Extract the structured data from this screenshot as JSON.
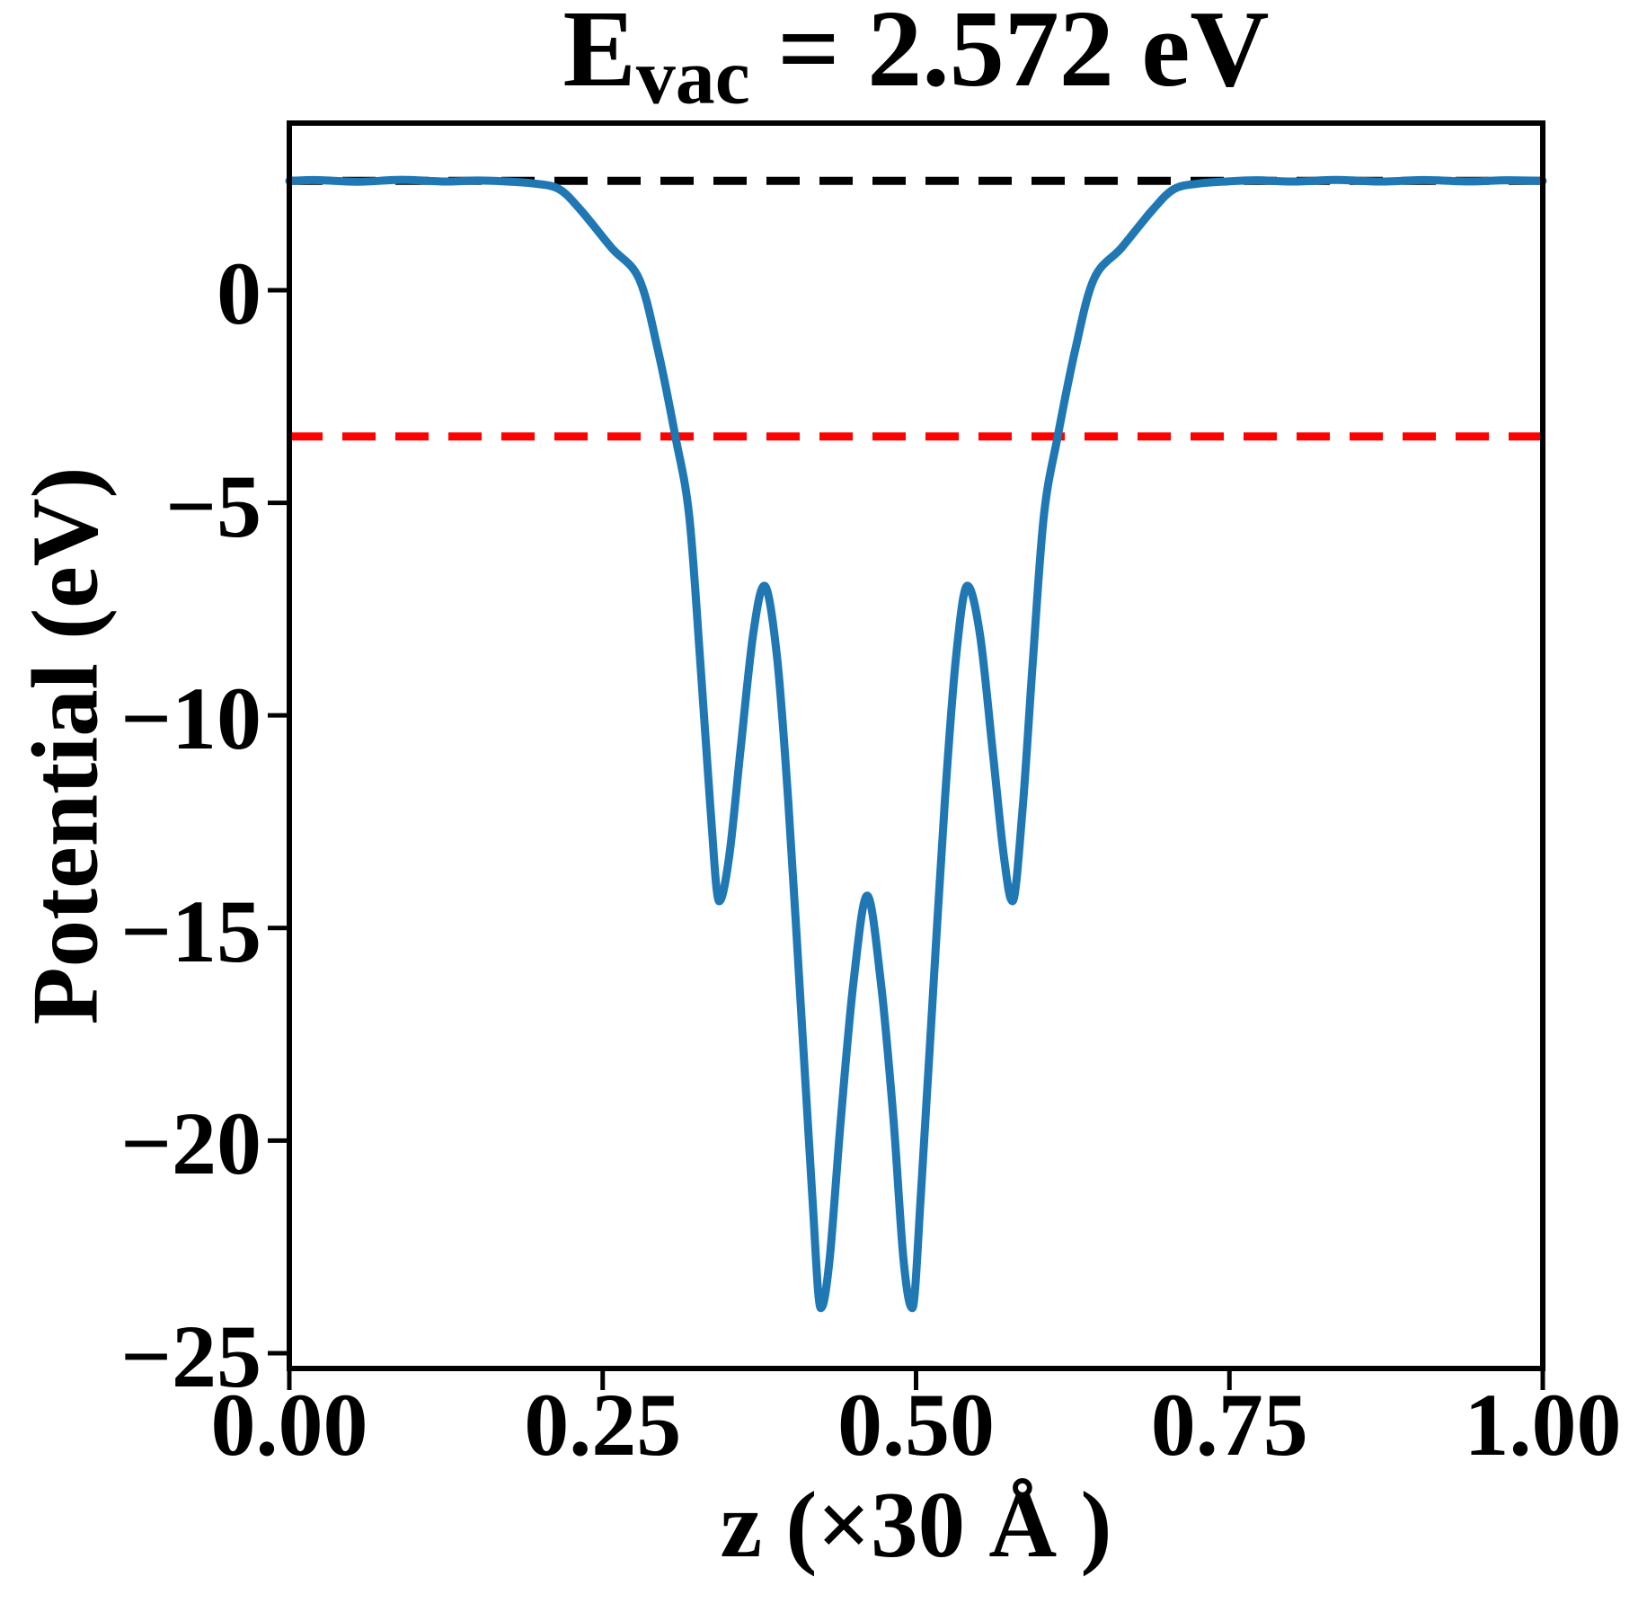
{
  "figure": {
    "background": "#ffffff",
    "frame_color": "#000000"
  },
  "title": {
    "full": "E_vac = 2.572 eV",
    "base": "E",
    "sub": "vac",
    "rest": " = 2.572 eV"
  },
  "chart_data": {
    "type": "line",
    "title": "E_vac = 2.572 eV",
    "xlabel": "z (×30 Å )",
    "ylabel": "Potential (eV)",
    "xlim": [
      0,
      1
    ],
    "ylim": [
      -25.36,
      3.93
    ],
    "grid": false,
    "legend": "none",
    "xticks": {
      "values": [
        0.0,
        0.25,
        0.5,
        0.75,
        1.0
      ],
      "labels": [
        "0.00",
        "0.25",
        "0.50",
        "0.75",
        "1.00"
      ]
    },
    "yticks": {
      "values": [
        0,
        -5,
        -10,
        -15,
        -20,
        -25
      ],
      "labels": [
        "0",
        "−5",
        "−10",
        "−15",
        "−20",
        "−25"
      ]
    },
    "horizontal_lines": [
      {
        "name": "vacuum-level",
        "y": 2.572,
        "color": "#000000",
        "style": "dashed"
      },
      {
        "name": "fermi-level",
        "y": -3.44,
        "color": "#ff0000",
        "style": "dashed"
      }
    ],
    "series": [
      {
        "name": "planar-averaged-potential",
        "color": "#1f77b4",
        "style": "solid",
        "points": [
          [
            0.0,
            2.572
          ],
          [
            0.02,
            2.59
          ],
          [
            0.055,
            2.552
          ],
          [
            0.09,
            2.595
          ],
          [
            0.125,
            2.555
          ],
          [
            0.15,
            2.58
          ],
          [
            0.172,
            2.56
          ],
          [
            0.195,
            2.51
          ],
          [
            0.215,
            2.38
          ],
          [
            0.232,
            1.9
          ],
          [
            0.257,
            1.0
          ],
          [
            0.279,
            0.27
          ],
          [
            0.294,
            -1.4
          ],
          [
            0.308,
            -3.44
          ],
          [
            0.319,
            -5.3
          ],
          [
            0.328,
            -8.8
          ],
          [
            0.336,
            -12.2
          ],
          [
            0.343,
            -14.37
          ],
          [
            0.351,
            -13.3
          ],
          [
            0.36,
            -10.8
          ],
          [
            0.37,
            -8.1
          ],
          [
            0.379,
            -6.95
          ],
          [
            0.389,
            -8.6
          ],
          [
            0.398,
            -12.0
          ],
          [
            0.408,
            -16.8
          ],
          [
            0.417,
            -21.2
          ],
          [
            0.424,
            -23.94
          ],
          [
            0.431,
            -22.8
          ],
          [
            0.44,
            -19.5
          ],
          [
            0.45,
            -16.3
          ],
          [
            0.461,
            -14.24
          ],
          [
            0.472,
            -16.3
          ],
          [
            0.482,
            -19.5
          ],
          [
            0.49,
            -22.8
          ],
          [
            0.497,
            -23.94
          ],
          [
            0.504,
            -21.2
          ],
          [
            0.513,
            -16.8
          ],
          [
            0.523,
            -12.0
          ],
          [
            0.532,
            -8.6
          ],
          [
            0.541,
            -6.95
          ],
          [
            0.551,
            -8.1
          ],
          [
            0.561,
            -10.8
          ],
          [
            0.57,
            -13.3
          ],
          [
            0.577,
            -14.37
          ],
          [
            0.585,
            -12.2
          ],
          [
            0.593,
            -8.8
          ],
          [
            0.602,
            -5.3
          ],
          [
            0.613,
            -3.44
          ],
          [
            0.627,
            -1.4
          ],
          [
            0.642,
            0.27
          ],
          [
            0.664,
            1.0
          ],
          [
            0.689,
            1.9
          ],
          [
            0.706,
            2.38
          ],
          [
            0.726,
            2.51
          ],
          [
            0.749,
            2.56
          ],
          [
            0.772,
            2.585
          ],
          [
            0.8,
            2.555
          ],
          [
            0.835,
            2.592
          ],
          [
            0.87,
            2.556
          ],
          [
            0.905,
            2.59
          ],
          [
            0.94,
            2.558
          ],
          [
            0.972,
            2.585
          ],
          [
            1.0,
            2.572
          ]
        ]
      }
    ]
  }
}
